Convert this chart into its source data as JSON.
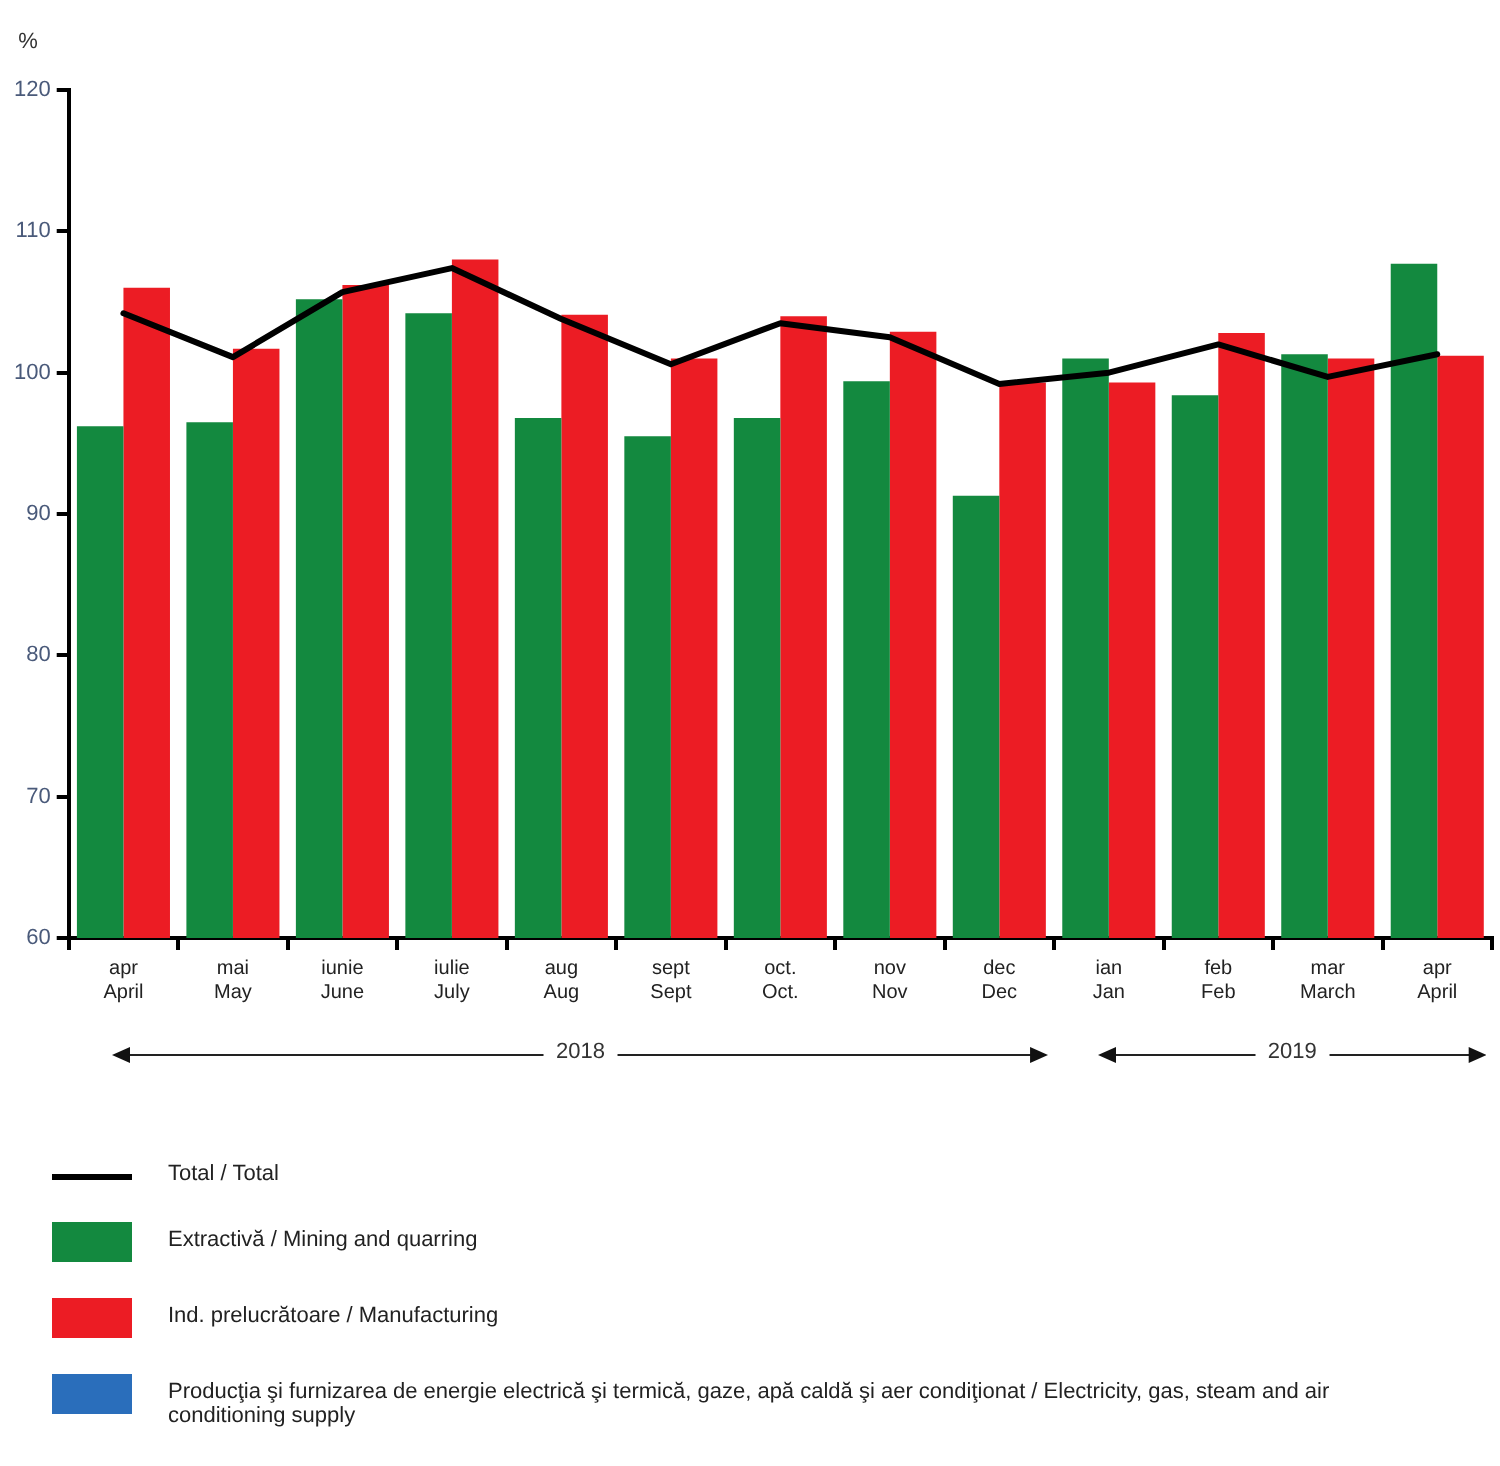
{
  "chart_data": {
    "type": "bar",
    "ylabel": "%",
    "categories": [
      "apr\nApril",
      "mai\nMay",
      "iunie\nJune",
      "iulie\nJuly",
      "aug\nAug",
      "sept\nSept",
      "oct.\nOct.",
      "nov\nNov",
      "dec\nDec",
      "ian\nJan",
      "feb\nFeb",
      "mar\nMarch",
      "apr\nApril"
    ],
    "series": [
      {
        "name": "Total  /  Total",
        "type": "line",
        "color": "#000000",
        "values": [
          104.2,
          101.1,
          105.7,
          107.4,
          103.8,
          100.6,
          103.5,
          102.5,
          99.2,
          100.0,
          102.0,
          99.7,
          101.3
        ]
      },
      {
        "name": "Extractivă  /  Mining and quarring",
        "color": "#13893f",
        "values": [
          96.2,
          96.5,
          105.2,
          104.2,
          96.8,
          95.5,
          96.8,
          99.4,
          91.3,
          101.0,
          98.4,
          101.3,
          107.7
        ]
      },
      {
        "name": "Ind. prelucrătoare  /  Manufacturing",
        "color": "#ec1c24",
        "values": [
          106.0,
          101.7,
          106.2,
          108.0,
          104.1,
          101.0,
          104.0,
          102.9,
          99.3,
          99.3,
          102.8,
          101.0,
          101.2
        ]
      },
      {
        "name": "Producţia şi furnizarea de energie electrică şi termică, gaze, apă caldă şi aer condiţionat /  Electricity, gas, steam and air conditioning supply",
        "color": "#2a6ebb",
        "values": [
          null,
          null,
          null,
          null,
          null,
          null,
          null,
          null,
          null,
          null,
          null,
          null,
          null
        ]
      }
    ],
    "ylim": [
      60,
      120
    ],
    "yticks": [
      60,
      70,
      80,
      90,
      100,
      110,
      120
    ],
    "grid": false,
    "legend": "bottom",
    "marker": "none",
    "annotations": [
      "2018",
      "2019"
    ]
  }
}
